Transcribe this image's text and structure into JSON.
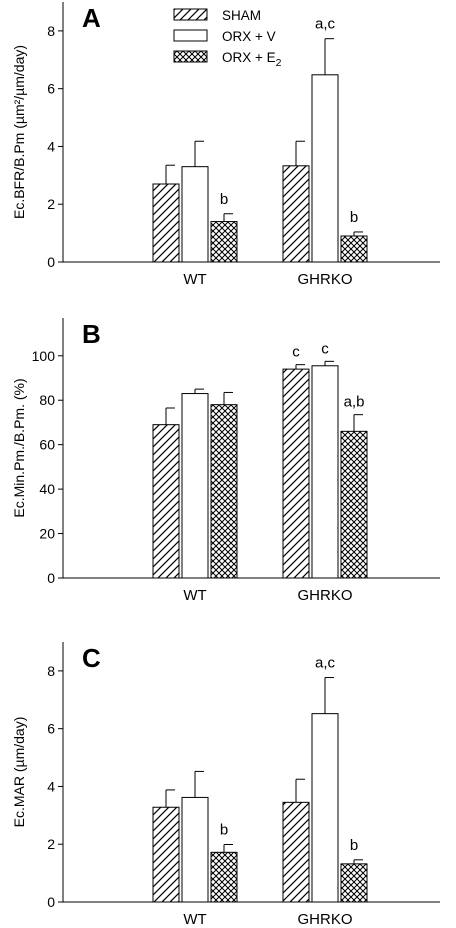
{
  "legend": [
    {
      "label": "SHAM",
      "pattern": "diagonal"
    },
    {
      "label": "ORX + V",
      "pattern": "open"
    },
    {
      "label": "ORX + E",
      "subscript": "2",
      "pattern": "crosshatch"
    }
  ],
  "chart_data": [
    {
      "type": "bar",
      "panel": "A",
      "ylabel": "Ec.BFR/B.Pm (µm²/µm/day)",
      "ylim": [
        0,
        9
      ],
      "yticks": [
        0,
        2,
        4,
        6,
        8
      ],
      "categories": [
        "WT",
        "GHRKO"
      ],
      "series": [
        {
          "name": "SHAM",
          "values": [
            2.7,
            3.33
          ],
          "errors": [
            0.65,
            0.85
          ],
          "annotations": [
            "",
            ""
          ]
        },
        {
          "name": "ORX + V",
          "values": [
            3.3,
            6.48
          ],
          "errors": [
            0.88,
            1.25
          ],
          "annotations": [
            "",
            "a,c"
          ]
        },
        {
          "name": "ORX + E2",
          "values": [
            1.4,
            0.9
          ],
          "errors": [
            0.27,
            0.14
          ],
          "annotations": [
            "b",
            "b"
          ]
        }
      ]
    },
    {
      "type": "bar",
      "panel": "B",
      "ylabel": "Ec.Min.Pm./B.Pm. (%)",
      "ylim": [
        0,
        117
      ],
      "yticks": [
        0,
        20,
        40,
        60,
        80,
        100
      ],
      "categories": [
        "WT",
        "GHRKO"
      ],
      "series": [
        {
          "name": "SHAM",
          "values": [
            69,
            94
          ],
          "errors": [
            7.5,
            2
          ],
          "annotations": [
            "",
            "c"
          ]
        },
        {
          "name": "ORX + V",
          "values": [
            83,
            95.5
          ],
          "errors": [
            2,
            2
          ],
          "annotations": [
            "",
            "c"
          ]
        },
        {
          "name": "ORX + E2",
          "values": [
            78,
            66
          ],
          "errors": [
            5.5,
            7.5
          ],
          "annotations": [
            "",
            "a,b"
          ]
        }
      ]
    },
    {
      "type": "bar",
      "panel": "C",
      "ylabel": "Ec.MAR (µm/day)",
      "ylim": [
        0,
        9
      ],
      "yticks": [
        0,
        2,
        4,
        6,
        8
      ],
      "categories": [
        "WT",
        "GHRKO"
      ],
      "series": [
        {
          "name": "SHAM",
          "values": [
            3.28,
            3.45
          ],
          "errors": [
            0.6,
            0.8
          ],
          "annotations": [
            "",
            ""
          ]
        },
        {
          "name": "ORX + V",
          "values": [
            3.62,
            6.52
          ],
          "errors": [
            0.9,
            1.25
          ],
          "annotations": [
            "",
            "a,c"
          ]
        },
        {
          "name": "ORX + E2",
          "values": [
            1.72,
            1.32
          ],
          "errors": [
            0.27,
            0.14
          ],
          "annotations": [
            "b",
            "b"
          ]
        }
      ]
    }
  ]
}
